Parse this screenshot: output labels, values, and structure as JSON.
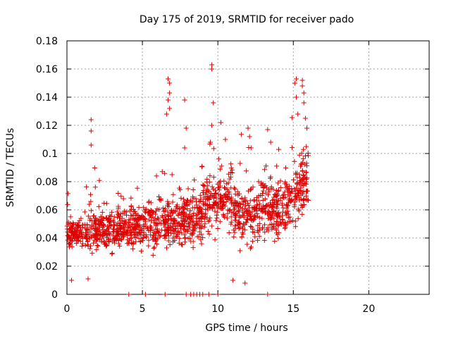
{
  "chart_data": {
    "type": "scatter",
    "title": "Day 175 of 2019, SRMTID for receiver pado",
    "xlabel": "GPS time / hours",
    "ylabel": "SRMTID / TECUs",
    "xlim": [
      0,
      24
    ],
    "ylim": [
      0,
      0.18
    ],
    "x_ticks": [
      0,
      5,
      10,
      15,
      20
    ],
    "x_tick_labels": [
      "0",
      "5",
      "10",
      "15",
      "20"
    ],
    "y_ticks": [
      0,
      0.02,
      0.04,
      0.06,
      0.08,
      0.1,
      0.12,
      0.14,
      0.16,
      0.18
    ],
    "y_tick_labels": [
      "0",
      "0.02",
      "0.04",
      "0.06",
      "0.08",
      "0.1",
      "0.12",
      "0.14",
      "0.16",
      "0.18"
    ],
    "grid": true,
    "marker": "+",
    "series": [
      {
        "name": "SRMTID",
        "color": "#dd0000",
        "generator": {
          "count": 1500,
          "x_range": [
            0,
            16
          ],
          "seed": 175,
          "note": "dense cloud of plus markers; baseline near 0.04 rising to ~0.07 by 16 h"
        },
        "highlights": [
          [
            1.6,
            0.124
          ],
          [
            1.6,
            0.116
          ],
          [
            1.6,
            0.106
          ],
          [
            6.7,
            0.153
          ],
          [
            6.8,
            0.15
          ],
          [
            6.8,
            0.143
          ],
          [
            6.7,
            0.138
          ],
          [
            6.8,
            0.132
          ],
          [
            6.6,
            0.128
          ],
          [
            7.8,
            0.138
          ],
          [
            7.9,
            0.118
          ],
          [
            7.8,
            0.104
          ],
          [
            9.6,
            0.163
          ],
          [
            9.6,
            0.16
          ],
          [
            9.7,
            0.136
          ],
          [
            9.6,
            0.12
          ],
          [
            9.5,
            0.108
          ],
          [
            10.2,
            0.122
          ],
          [
            10.5,
            0.11
          ],
          [
            12.0,
            0.118
          ],
          [
            12.1,
            0.112
          ],
          [
            12.2,
            0.104
          ],
          [
            13.3,
            0.117
          ],
          [
            13.5,
            0.108
          ],
          [
            15.2,
            0.153
          ],
          [
            15.1,
            0.15
          ],
          [
            15.6,
            0.152
          ],
          [
            15.6,
            0.148
          ],
          [
            15.7,
            0.143
          ],
          [
            15.2,
            0.14
          ],
          [
            15.7,
            0.136
          ],
          [
            15.3,
            0.128
          ],
          [
            15.8,
            0.125
          ],
          [
            15.9,
            0.118
          ],
          [
            11.8,
            0.008
          ],
          [
            11.0,
            0.01
          ],
          [
            0.3,
            0.01
          ],
          [
            1.4,
            0.011
          ]
        ],
        "zero_points_x": [
          4.1,
          5.2,
          6.5,
          7.9,
          8.2,
          8.4,
          8.6,
          8.8,
          9.0,
          9.4,
          10.0,
          13.3
        ]
      }
    ]
  }
}
